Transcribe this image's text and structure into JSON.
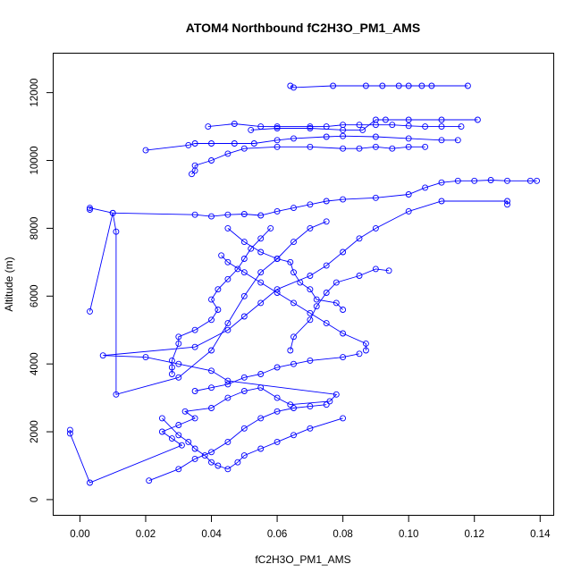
{
  "chart_data": {
    "type": "scatter",
    "title": "ATOM4 Northbound fC2H3O_PM1_AMS",
    "xlabel": "fC2H3O_PM1_AMS",
    "ylabel": "Altitude (m)",
    "xlim": [
      -0.008,
      0.144
    ],
    "ylim": [
      -450,
      13150
    ],
    "xticks": [
      0.0,
      0.02,
      0.04,
      0.06,
      0.08,
      0.1,
      0.12,
      0.14
    ],
    "xtick_labels": [
      "0.00",
      "0.02",
      "0.04",
      "0.06",
      "0.08",
      "0.10",
      "0.12",
      "0.14"
    ],
    "yticks": [
      0,
      2000,
      4000,
      6000,
      8000,
      10000,
      12000
    ],
    "ytick_labels": [
      "0",
      "2000",
      "4000",
      "6000",
      "8000",
      "10000",
      "12000"
    ],
    "grid": false,
    "color": "#0000ff",
    "marker": "open-circle",
    "connected": true,
    "series": [
      {
        "points": [
          [
            -0.003,
            2050
          ],
          [
            -0.003,
            1950
          ],
          [
            0.003,
            500
          ],
          [
            0.031,
            1600
          ],
          [
            0.028,
            1800
          ],
          [
            0.025,
            2000
          ],
          [
            0.03,
            2200
          ],
          [
            0.035,
            2400
          ],
          [
            0.032,
            2600
          ],
          [
            0.04,
            2700
          ],
          [
            0.045,
            3000
          ],
          [
            0.05,
            3200
          ],
          [
            0.055,
            3300
          ],
          [
            0.06,
            3000
          ],
          [
            0.064,
            2800
          ],
          [
            0.076,
            2900
          ],
          [
            0.078,
            3100
          ],
          [
            0.045,
            3500
          ],
          [
            0.04,
            3800
          ],
          [
            0.03,
            4000
          ],
          [
            0.02,
            4200
          ],
          [
            0.007,
            4250
          ],
          [
            0.035,
            4500
          ],
          [
            0.045,
            5000
          ],
          [
            0.05,
            5400
          ],
          [
            0.055,
            5800
          ],
          [
            0.06,
            6200
          ],
          [
            0.07,
            6600
          ],
          [
            0.075,
            6900
          ],
          [
            0.08,
            7300
          ],
          [
            0.085,
            7700
          ],
          [
            0.09,
            8000
          ],
          [
            0.1,
            8500
          ],
          [
            0.11,
            8800
          ],
          [
            0.13,
            8800
          ],
          [
            0.13,
            8700
          ]
        ]
      },
      {
        "points": [
          [
            0.003,
            8550
          ],
          [
            0.003,
            8600
          ],
          [
            0.01,
            8450
          ],
          [
            0.035,
            8400
          ],
          [
            0.04,
            8350
          ],
          [
            0.045,
            8400
          ],
          [
            0.05,
            8420
          ],
          [
            0.055,
            8380
          ],
          [
            0.06,
            8500
          ],
          [
            0.065,
            8600
          ],
          [
            0.07,
            8700
          ],
          [
            0.075,
            8800
          ],
          [
            0.08,
            8850
          ],
          [
            0.09,
            8900
          ],
          [
            0.1,
            9000
          ],
          [
            0.105,
            9200
          ],
          [
            0.11,
            9350
          ],
          [
            0.115,
            9400
          ],
          [
            0.12,
            9400
          ],
          [
            0.125,
            9420
          ],
          [
            0.13,
            9400
          ],
          [
            0.137,
            9400
          ],
          [
            0.139,
            9400
          ]
        ]
      },
      {
        "points": [
          [
            0.003,
            5550
          ],
          [
            0.01,
            8450
          ],
          [
            0.011,
            7900
          ],
          [
            0.011,
            3100
          ],
          [
            0.03,
            3600
          ],
          [
            0.04,
            4400
          ],
          [
            0.045,
            5200
          ],
          [
            0.05,
            6000
          ],
          [
            0.055,
            6700
          ],
          [
            0.06,
            7100
          ],
          [
            0.065,
            7600
          ],
          [
            0.07,
            8000
          ],
          [
            0.075,
            8200
          ]
        ]
      },
      {
        "points": [
          [
            0.021,
            560
          ],
          [
            0.03,
            900
          ],
          [
            0.035,
            1200
          ],
          [
            0.04,
            1400
          ],
          [
            0.045,
            1700
          ],
          [
            0.05,
            2100
          ],
          [
            0.055,
            2400
          ],
          [
            0.06,
            2600
          ],
          [
            0.065,
            2700
          ],
          [
            0.07,
            2750
          ],
          [
            0.075,
            2800
          ]
        ]
      },
      {
        "points": [
          [
            0.02,
            10300
          ],
          [
            0.033,
            10450
          ],
          [
            0.035,
            10500
          ],
          [
            0.04,
            10500
          ],
          [
            0.047,
            10500
          ],
          [
            0.053,
            10500
          ],
          [
            0.06,
            10600
          ],
          [
            0.065,
            10650
          ],
          [
            0.075,
            10700
          ],
          [
            0.08,
            10720
          ],
          [
            0.09,
            10700
          ],
          [
            0.1,
            10650
          ],
          [
            0.11,
            10600
          ],
          [
            0.115,
            10600
          ]
        ]
      },
      {
        "points": [
          [
            0.034,
            9600
          ],
          [
            0.035,
            9700
          ],
          [
            0.035,
            9850
          ],
          [
            0.04,
            10000
          ],
          [
            0.045,
            10200
          ],
          [
            0.05,
            10350
          ],
          [
            0.06,
            10400
          ],
          [
            0.07,
            10400
          ],
          [
            0.08,
            10350
          ],
          [
            0.085,
            10350
          ],
          [
            0.09,
            10400
          ],
          [
            0.095,
            10350
          ],
          [
            0.1,
            10400
          ],
          [
            0.105,
            10400
          ]
        ]
      },
      {
        "points": [
          [
            0.039,
            11000
          ],
          [
            0.047,
            11080
          ],
          [
            0.055,
            11000
          ],
          [
            0.06,
            11000
          ],
          [
            0.07,
            11000
          ],
          [
            0.075,
            11000
          ],
          [
            0.08,
            11050
          ],
          [
            0.085,
            11050
          ],
          [
            0.09,
            11050
          ],
          [
            0.095,
            11050
          ],
          [
            0.1,
            11020
          ],
          [
            0.105,
            11000
          ],
          [
            0.11,
            11000
          ],
          [
            0.116,
            11000
          ]
        ]
      },
      {
        "points": [
          [
            0.052,
            10900
          ],
          [
            0.06,
            10950
          ],
          [
            0.07,
            10950
          ],
          [
            0.08,
            10900
          ],
          [
            0.086,
            10900
          ],
          [
            0.09,
            11200
          ],
          [
            0.093,
            11200
          ],
          [
            0.1,
            11200
          ],
          [
            0.11,
            11200
          ],
          [
            0.121,
            11200
          ]
        ]
      },
      {
        "points": [
          [
            0.064,
            12200
          ],
          [
            0.065,
            12150
          ],
          [
            0.077,
            12200
          ],
          [
            0.087,
            12200
          ],
          [
            0.092,
            12200
          ],
          [
            0.097,
            12200
          ],
          [
            0.1,
            12200
          ],
          [
            0.104,
            12200
          ],
          [
            0.107,
            12200
          ],
          [
            0.118,
            12200
          ]
        ]
      },
      {
        "points": [
          [
            0.025,
            2400
          ],
          [
            0.03,
            1900
          ],
          [
            0.033,
            1700
          ],
          [
            0.035,
            1500
          ],
          [
            0.038,
            1300
          ],
          [
            0.04,
            1100
          ],
          [
            0.042,
            1000
          ],
          [
            0.045,
            900
          ],
          [
            0.048,
            1100
          ],
          [
            0.05,
            1300
          ],
          [
            0.055,
            1500
          ],
          [
            0.06,
            1700
          ],
          [
            0.065,
            1900
          ],
          [
            0.07,
            2100
          ],
          [
            0.08,
            2400
          ]
        ]
      },
      {
        "points": [
          [
            0.028,
            3700
          ],
          [
            0.028,
            3900
          ],
          [
            0.028,
            4100
          ],
          [
            0.03,
            4600
          ],
          [
            0.03,
            4800
          ],
          [
            0.035,
            5000
          ],
          [
            0.04,
            5300
          ],
          [
            0.042,
            5600
          ],
          [
            0.04,
            5900
          ],
          [
            0.042,
            6200
          ],
          [
            0.045,
            6500
          ],
          [
            0.048,
            6800
          ],
          [
            0.05,
            7100
          ],
          [
            0.052,
            7400
          ],
          [
            0.055,
            7700
          ],
          [
            0.058,
            8000
          ]
        ]
      },
      {
        "points": [
          [
            0.043,
            7200
          ],
          [
            0.045,
            7000
          ],
          [
            0.05,
            6700
          ],
          [
            0.055,
            6400
          ],
          [
            0.06,
            6100
          ],
          [
            0.065,
            5800
          ],
          [
            0.07,
            5500
          ],
          [
            0.075,
            5200
          ],
          [
            0.08,
            4900
          ],
          [
            0.087,
            4600
          ],
          [
            0.087,
            4400
          ]
        ]
      },
      {
        "points": [
          [
            0.064,
            4400
          ],
          [
            0.065,
            4800
          ],
          [
            0.07,
            5300
          ],
          [
            0.072,
            5700
          ],
          [
            0.075,
            6100
          ],
          [
            0.078,
            6400
          ],
          [
            0.085,
            6600
          ],
          [
            0.09,
            6800
          ],
          [
            0.094,
            6750
          ]
        ]
      },
      {
        "points": [
          [
            0.045,
            8000
          ],
          [
            0.05,
            7600
          ],
          [
            0.055,
            7300
          ],
          [
            0.06,
            7100
          ],
          [
            0.064,
            7000
          ],
          [
            0.065,
            6700
          ],
          [
            0.067,
            6400
          ],
          [
            0.07,
            6200
          ],
          [
            0.072,
            5900
          ],
          [
            0.078,
            5800
          ],
          [
            0.08,
            5600
          ]
        ]
      },
      {
        "points": [
          [
            0.035,
            3200
          ],
          [
            0.04,
            3300
          ],
          [
            0.045,
            3400
          ],
          [
            0.05,
            3600
          ],
          [
            0.055,
            3700
          ],
          [
            0.06,
            3900
          ],
          [
            0.065,
            4000
          ],
          [
            0.07,
            4100
          ],
          [
            0.08,
            4200
          ],
          [
            0.085,
            4300
          ]
        ]
      }
    ]
  }
}
